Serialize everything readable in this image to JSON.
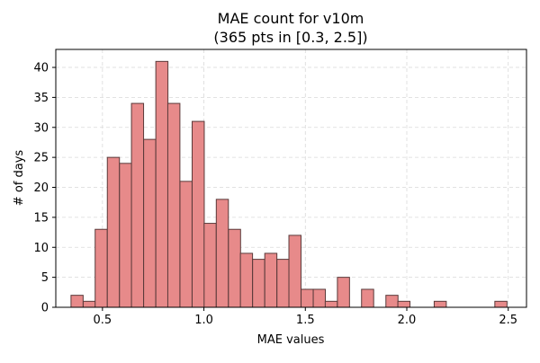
{
  "chart_data": {
    "type": "bar",
    "title": "MAE count for v10m",
    "subtitle": "(365 pts in [0.3, 2.5])",
    "xlabel": "MAE values",
    "ylabel": "# of days",
    "xlim": [
      0.27,
      2.59
    ],
    "ylim": [
      0,
      43
    ],
    "x_ticks": [
      0.5,
      1.0,
      1.5,
      2.0,
      2.5
    ],
    "x_tick_labels": [
      "0.5",
      "1.0",
      "1.5",
      "2.0",
      "2.5"
    ],
    "y_ticks": [
      0,
      5,
      10,
      15,
      20,
      25,
      30,
      35,
      40
    ],
    "y_tick_labels": [
      "0",
      "5",
      "10",
      "15",
      "20",
      "25",
      "30",
      "35",
      "40"
    ],
    "grid": true,
    "bin_width": 0.0597,
    "series": [
      {
        "bin_starts": [
          0.345,
          0.405,
          0.464,
          0.524,
          0.584,
          0.643,
          0.703,
          0.763,
          0.822,
          0.882,
          0.942,
          1.001,
          1.061,
          1.121,
          1.18,
          1.24,
          1.3,
          1.36,
          1.419,
          1.479,
          1.539,
          1.598,
          1.658,
          1.718,
          1.777,
          1.837,
          1.897,
          1.956,
          2.016,
          2.076,
          2.135,
          2.195,
          2.255,
          2.314,
          2.374,
          2.434
        ],
        "values": [
          2,
          1,
          13,
          25,
          24,
          34,
          28,
          41,
          34,
          21,
          31,
          14,
          18,
          13,
          9,
          8,
          9,
          8,
          12,
          3,
          3,
          1,
          5,
          0,
          3,
          0,
          2,
          1,
          0,
          0,
          1,
          0,
          0,
          0,
          0,
          1
        ]
      }
    ],
    "colors": {
      "bar_fill": "#e78a8a",
      "bar_edge": "#5a3a3a",
      "grid": "#d9d9d9"
    }
  }
}
